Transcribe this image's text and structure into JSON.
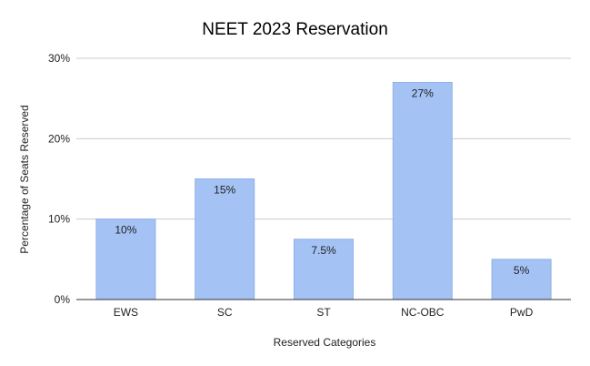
{
  "colors": {
    "bar_fill": "#a4c2f4",
    "bar_stroke": "#8fb0ea",
    "grid": "#cccccc",
    "axis": "#333333",
    "background": "#ffffff"
  },
  "chart_data": {
    "type": "bar",
    "title": "NEET 2023 Reservation",
    "xlabel": "Reserved Categories",
    "ylabel": "Percentage of Seats Reserved",
    "categories": [
      "EWS",
      "SC",
      "ST",
      "NC-OBC",
      "PwD"
    ],
    "values": [
      10,
      15,
      7.5,
      27,
      5
    ],
    "data_labels": [
      "10%",
      "15%",
      "7.5%",
      "27%",
      "5%"
    ],
    "ylim": [
      0,
      30
    ],
    "yticks": [
      0,
      10,
      20,
      30
    ],
    "ytick_labels": [
      "0%",
      "10%",
      "20%",
      "30%"
    ],
    "grid": true,
    "legend": "none"
  }
}
